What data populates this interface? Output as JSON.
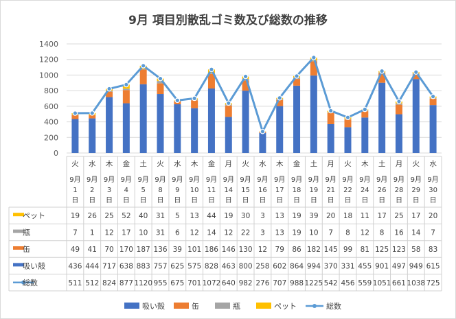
{
  "chart_data": {
    "type": "bar",
    "stacked": true,
    "title": "9月 項目別散乱ゴミ数及び総数の推移",
    "ylim": [
      0,
      1400
    ],
    "yticks": [
      0,
      200,
      400,
      600,
      800,
      1000,
      1200,
      1400
    ],
    "grid": true,
    "legend_position": "bottom",
    "weekdays": [
      "火",
      "水",
      "木",
      "金",
      "土",
      "火",
      "水",
      "木",
      "金",
      "月",
      "火",
      "水",
      "木",
      "金",
      "土",
      "月",
      "火",
      "木",
      "土",
      "月",
      "火",
      "水"
    ],
    "dates": [
      "9月1日",
      "9月2日",
      "9月3日",
      "9月4日",
      "9月5日",
      "9月8日",
      "9月9日",
      "9月10日",
      "9月11日",
      "9月14日",
      "9月15日",
      "9月16日",
      "9月17日",
      "9月18日",
      "9月19日",
      "9月21日",
      "9月22日",
      "9月24日",
      "9月26日",
      "9月28日",
      "9月29日",
      "9月30日"
    ],
    "series": [
      {
        "name": "ペット",
        "color": "#ffc000",
        "values": [
          19,
          26,
          25,
          52,
          40,
          31,
          5,
          13,
          44,
          19,
          30,
          3,
          13,
          19,
          39,
          20,
          18,
          11,
          17,
          25,
          17,
          20
        ]
      },
      {
        "name": "瓶",
        "color": "#a5a5a5",
        "values": [
          7,
          1,
          12,
          17,
          10,
          31,
          6,
          12,
          14,
          12,
          22,
          3,
          13,
          19,
          10,
          7,
          8,
          12,
          8,
          16,
          14,
          7
        ]
      },
      {
        "name": "缶",
        "color": "#ed7d31",
        "values": [
          49,
          41,
          70,
          170,
          187,
          136,
          39,
          101,
          186,
          146,
          130,
          12,
          79,
          86,
          182,
          145,
          99,
          81,
          125,
          123,
          58,
          83
        ]
      },
      {
        "name": "吸い殻",
        "color": "#4472c4",
        "values": [
          436,
          444,
          717,
          638,
          883,
          757,
          625,
          575,
          828,
          463,
          800,
          258,
          602,
          864,
          994,
          370,
          331,
          455,
          901,
          497,
          949,
          615
        ]
      }
    ],
    "total": {
      "name": "総数",
      "color": "#5b9bd5",
      "values": [
        511,
        512,
        824,
        877,
        1120,
        955,
        675,
        701,
        1072,
        640,
        982,
        276,
        707,
        988,
        1225,
        542,
        456,
        559,
        1051,
        661,
        1038,
        725
      ]
    },
    "table_order": [
      "ペット",
      "瓶",
      "缶",
      "吸い殻",
      "総数"
    ],
    "legend_order": [
      "吸い殻",
      "缶",
      "瓶",
      "ペット",
      "総数"
    ]
  }
}
